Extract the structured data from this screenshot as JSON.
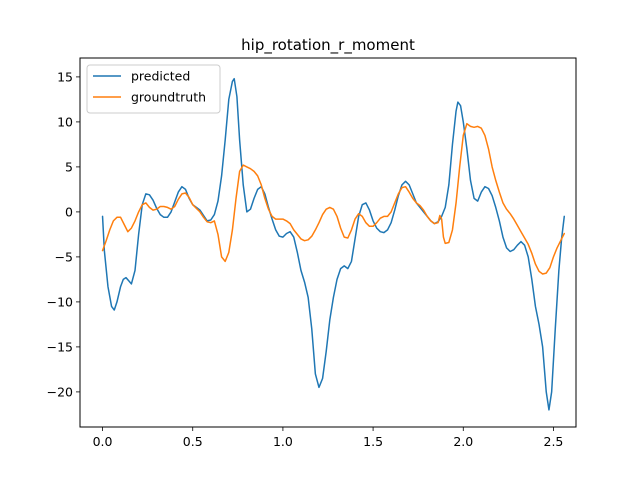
{
  "chart_data": {
    "type": "line",
    "title": "hip_rotation_r_moment",
    "xlabel": "",
    "ylabel": "",
    "xlim": [
      -0.125,
      2.625
    ],
    "ylim": [
      -23.9,
      17.1
    ],
    "xticks": [
      0.0,
      0.5,
      1.0,
      1.5,
      2.0,
      2.5
    ],
    "xtick_labels": [
      "0.0",
      "0.5",
      "1.0",
      "1.5",
      "2.0",
      "2.5"
    ],
    "yticks": [
      -20,
      -15,
      -10,
      -5,
      0,
      5,
      10,
      15
    ],
    "ytick_labels": [
      "−20",
      "−15",
      "−10",
      "−5",
      "0",
      "5",
      "10",
      "15"
    ],
    "grid": false,
    "legend_position": "top-left",
    "series": [
      {
        "name": "predicted",
        "color": "#1f77b4",
        "points": [
          [
            0.0,
            -0.5
          ],
          [
            0.01,
            -4.3
          ],
          [
            0.03,
            -8.3
          ],
          [
            0.05,
            -10.5
          ],
          [
            0.065,
            -10.9
          ],
          [
            0.08,
            -10.0
          ],
          [
            0.1,
            -8.3
          ],
          [
            0.115,
            -7.5
          ],
          [
            0.13,
            -7.3
          ],
          [
            0.16,
            -8.0
          ],
          [
            0.18,
            -6.5
          ],
          [
            0.2,
            -2.5
          ],
          [
            0.22,
            0.8
          ],
          [
            0.24,
            2.0
          ],
          [
            0.26,
            1.9
          ],
          [
            0.28,
            1.3
          ],
          [
            0.3,
            0.4
          ],
          [
            0.32,
            -0.3
          ],
          [
            0.34,
            -0.6
          ],
          [
            0.36,
            -0.6
          ],
          [
            0.38,
            0.0
          ],
          [
            0.4,
            1.1
          ],
          [
            0.42,
            2.2
          ],
          [
            0.44,
            2.8
          ],
          [
            0.46,
            2.5
          ],
          [
            0.48,
            1.5
          ],
          [
            0.5,
            0.8
          ],
          [
            0.52,
            0.5
          ],
          [
            0.54,
            0.2
          ],
          [
            0.56,
            -0.4
          ],
          [
            0.58,
            -1.0
          ],
          [
            0.6,
            -0.9
          ],
          [
            0.62,
            -0.3
          ],
          [
            0.64,
            1.2
          ],
          [
            0.66,
            4.0
          ],
          [
            0.68,
            8.0
          ],
          [
            0.7,
            12.5
          ],
          [
            0.72,
            14.5
          ],
          [
            0.73,
            14.8
          ],
          [
            0.745,
            12.8
          ],
          [
            0.76,
            8.0
          ],
          [
            0.78,
            3.0
          ],
          [
            0.8,
            0.0
          ],
          [
            0.82,
            0.3
          ],
          [
            0.84,
            1.5
          ],
          [
            0.86,
            2.5
          ],
          [
            0.88,
            2.8
          ],
          [
            0.9,
            2.0
          ],
          [
            0.92,
            0.5
          ],
          [
            0.94,
            -0.8
          ],
          [
            0.96,
            -2.0
          ],
          [
            0.98,
            -2.7
          ],
          [
            1.0,
            -2.8
          ],
          [
            1.02,
            -2.4
          ],
          [
            1.04,
            -2.2
          ],
          [
            1.06,
            -2.8
          ],
          [
            1.08,
            -4.5
          ],
          [
            1.1,
            -6.5
          ],
          [
            1.12,
            -7.8
          ],
          [
            1.14,
            -9.5
          ],
          [
            1.16,
            -13.0
          ],
          [
            1.18,
            -18.0
          ],
          [
            1.2,
            -19.5
          ],
          [
            1.22,
            -18.5
          ],
          [
            1.24,
            -15.5
          ],
          [
            1.26,
            -12.0
          ],
          [
            1.28,
            -9.5
          ],
          [
            1.3,
            -7.5
          ],
          [
            1.32,
            -6.3
          ],
          [
            1.34,
            -6.0
          ],
          [
            1.36,
            -6.3
          ],
          [
            1.38,
            -5.5
          ],
          [
            1.4,
            -3.0
          ],
          [
            1.42,
            -0.5
          ],
          [
            1.44,
            0.8
          ],
          [
            1.46,
            1.0
          ],
          [
            1.48,
            0.2
          ],
          [
            1.5,
            -1.0
          ],
          [
            1.52,
            -1.8
          ],
          [
            1.54,
            -2.2
          ],
          [
            1.56,
            -2.3
          ],
          [
            1.58,
            -2.0
          ],
          [
            1.6,
            -1.2
          ],
          [
            1.62,
            0.2
          ],
          [
            1.64,
            1.8
          ],
          [
            1.66,
            3.0
          ],
          [
            1.68,
            3.4
          ],
          [
            1.7,
            3.0
          ],
          [
            1.72,
            2.0
          ],
          [
            1.74,
            1.0
          ],
          [
            1.76,
            0.5
          ],
          [
            1.78,
            0.0
          ],
          [
            1.8,
            -0.5
          ],
          [
            1.82,
            -1.0
          ],
          [
            1.84,
            -1.3
          ],
          [
            1.86,
            -1.1
          ],
          [
            1.88,
            -0.5
          ],
          [
            1.9,
            0.5
          ],
          [
            1.92,
            3.0
          ],
          [
            1.94,
            7.5
          ],
          [
            1.96,
            11.2
          ],
          [
            1.97,
            12.2
          ],
          [
            1.985,
            11.8
          ],
          [
            2.0,
            10.0
          ],
          [
            2.02,
            7.0
          ],
          [
            2.04,
            3.5
          ],
          [
            2.06,
            1.5
          ],
          [
            2.08,
            1.2
          ],
          [
            2.1,
            2.2
          ],
          [
            2.12,
            2.8
          ],
          [
            2.14,
            2.6
          ],
          [
            2.16,
            1.8
          ],
          [
            2.18,
            0.5
          ],
          [
            2.2,
            -1.0
          ],
          [
            2.22,
            -2.8
          ],
          [
            2.24,
            -4.0
          ],
          [
            2.26,
            -4.4
          ],
          [
            2.28,
            -4.2
          ],
          [
            2.3,
            -3.7
          ],
          [
            2.32,
            -3.3
          ],
          [
            2.34,
            -3.7
          ],
          [
            2.36,
            -5.0
          ],
          [
            2.38,
            -7.5
          ],
          [
            2.4,
            -10.5
          ],
          [
            2.42,
            -12.5
          ],
          [
            2.44,
            -15.0
          ],
          [
            2.46,
            -20.0
          ],
          [
            2.475,
            -22.0
          ],
          [
            2.49,
            -20.0
          ],
          [
            2.51,
            -13.0
          ],
          [
            2.53,
            -6.5
          ],
          [
            2.545,
            -3.0
          ],
          [
            2.56,
            -0.5
          ]
        ]
      },
      {
        "name": "groundtruth",
        "color": "#ff7f0e",
        "points": [
          [
            0.0,
            -4.3
          ],
          [
            0.02,
            -3.2
          ],
          [
            0.04,
            -2.0
          ],
          [
            0.06,
            -1.0
          ],
          [
            0.08,
            -0.6
          ],
          [
            0.1,
            -0.6
          ],
          [
            0.12,
            -1.4
          ],
          [
            0.14,
            -2.2
          ],
          [
            0.16,
            -1.8
          ],
          [
            0.18,
            -1.0
          ],
          [
            0.2,
            0.0
          ],
          [
            0.22,
            0.8
          ],
          [
            0.24,
            1.0
          ],
          [
            0.26,
            0.5
          ],
          [
            0.28,
            0.2
          ],
          [
            0.3,
            0.3
          ],
          [
            0.32,
            0.6
          ],
          [
            0.34,
            0.6
          ],
          [
            0.36,
            0.5
          ],
          [
            0.38,
            0.3
          ],
          [
            0.4,
            0.6
          ],
          [
            0.42,
            1.4
          ],
          [
            0.44,
            2.0
          ],
          [
            0.46,
            2.1
          ],
          [
            0.48,
            1.6
          ],
          [
            0.5,
            0.8
          ],
          [
            0.52,
            0.4
          ],
          [
            0.54,
            0.0
          ],
          [
            0.56,
            -0.6
          ],
          [
            0.58,
            -1.1
          ],
          [
            0.6,
            -1.2
          ],
          [
            0.62,
            -1.0
          ],
          [
            0.64,
            -2.5
          ],
          [
            0.66,
            -5.0
          ],
          [
            0.68,
            -5.5
          ],
          [
            0.7,
            -4.5
          ],
          [
            0.72,
            -2.0
          ],
          [
            0.74,
            1.5
          ],
          [
            0.76,
            4.5
          ],
          [
            0.78,
            5.2
          ],
          [
            0.8,
            5.0
          ],
          [
            0.82,
            4.8
          ],
          [
            0.84,
            4.5
          ],
          [
            0.86,
            4.0
          ],
          [
            0.88,
            3.0
          ],
          [
            0.9,
            1.5
          ],
          [
            0.92,
            0.3
          ],
          [
            0.94,
            -0.5
          ],
          [
            0.96,
            -0.8
          ],
          [
            0.98,
            -0.8
          ],
          [
            1.0,
            -0.8
          ],
          [
            1.02,
            -1.0
          ],
          [
            1.04,
            -1.3
          ],
          [
            1.06,
            -2.0
          ],
          [
            1.08,
            -2.5
          ],
          [
            1.1,
            -3.0
          ],
          [
            1.12,
            -3.2
          ],
          [
            1.14,
            -3.1
          ],
          [
            1.16,
            -2.7
          ],
          [
            1.18,
            -2.0
          ],
          [
            1.2,
            -1.2
          ],
          [
            1.22,
            -0.3
          ],
          [
            1.24,
            0.3
          ],
          [
            1.26,
            0.5
          ],
          [
            1.28,
            0.3
          ],
          [
            1.3,
            -0.5
          ],
          [
            1.32,
            -1.8
          ],
          [
            1.34,
            -2.8
          ],
          [
            1.36,
            -2.9
          ],
          [
            1.38,
            -2.0
          ],
          [
            1.4,
            -0.8
          ],
          [
            1.42,
            -0.2
          ],
          [
            1.44,
            -0.5
          ],
          [
            1.46,
            -1.2
          ],
          [
            1.48,
            -1.6
          ],
          [
            1.5,
            -1.6
          ],
          [
            1.52,
            -1.2
          ],
          [
            1.54,
            -0.7
          ],
          [
            1.56,
            -0.5
          ],
          [
            1.58,
            -0.5
          ],
          [
            1.6,
            0.0
          ],
          [
            1.62,
            1.0
          ],
          [
            1.64,
            2.0
          ],
          [
            1.66,
            2.7
          ],
          [
            1.68,
            2.8
          ],
          [
            1.7,
            2.2
          ],
          [
            1.72,
            1.5
          ],
          [
            1.74,
            1.0
          ],
          [
            1.76,
            0.7
          ],
          [
            1.78,
            0.2
          ],
          [
            1.8,
            -0.5
          ],
          [
            1.82,
            -1.0
          ],
          [
            1.84,
            -1.3
          ],
          [
            1.86,
            -1.2
          ],
          [
            1.87,
            -0.4
          ],
          [
            1.88,
            -0.8
          ],
          [
            1.89,
            -2.8
          ],
          [
            1.9,
            -3.5
          ],
          [
            1.92,
            -3.4
          ],
          [
            1.94,
            -2.0
          ],
          [
            1.96,
            1.0
          ],
          [
            1.98,
            5.0
          ],
          [
            2.0,
            8.5
          ],
          [
            2.02,
            9.8
          ],
          [
            2.04,
            9.5
          ],
          [
            2.06,
            9.4
          ],
          [
            2.08,
            9.5
          ],
          [
            2.1,
            9.3
          ],
          [
            2.12,
            8.5
          ],
          [
            2.14,
            7.0
          ],
          [
            2.16,
            5.0
          ],
          [
            2.18,
            3.5
          ],
          [
            2.2,
            2.2
          ],
          [
            2.22,
            1.0
          ],
          [
            2.24,
            0.3
          ],
          [
            2.26,
            -0.2
          ],
          [
            2.28,
            -0.8
          ],
          [
            2.3,
            -1.5
          ],
          [
            2.32,
            -2.2
          ],
          [
            2.34,
            -2.9
          ],
          [
            2.36,
            -3.6
          ],
          [
            2.38,
            -4.6
          ],
          [
            2.4,
            -5.8
          ],
          [
            2.42,
            -6.6
          ],
          [
            2.44,
            -6.9
          ],
          [
            2.46,
            -6.8
          ],
          [
            2.48,
            -6.2
          ],
          [
            2.5,
            -5.0
          ],
          [
            2.52,
            -4.0
          ],
          [
            2.54,
            -3.2
          ],
          [
            2.56,
            -2.4
          ]
        ]
      }
    ]
  }
}
